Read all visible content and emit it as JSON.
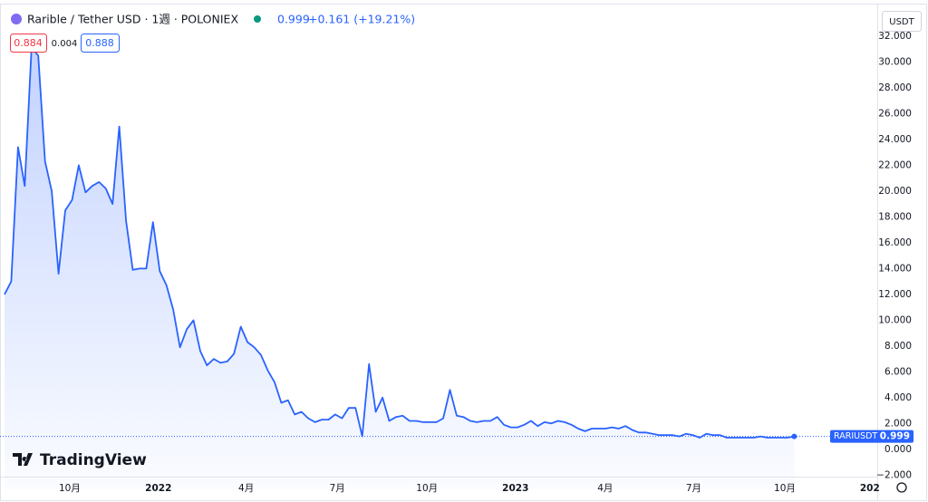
{
  "chart_data": {
    "type": "area",
    "title": "Rarible / Tether USD · 1週 · POLONIEX",
    "last_price": "0.999",
    "change": "+0.161 (+19.21%)",
    "boxes": [
      "0.884",
      "0.004",
      "0.888"
    ],
    "currency": "USDT",
    "symbol": "RARIUSDT",
    "brand": "TradingView",
    "color": "#2962ff",
    "values": [
      12.0,
      13.0,
      23.4,
      20.4,
      31.1,
      30.5,
      22.3,
      20.0,
      13.6,
      18.5,
      19.3,
      22.0,
      19.9,
      20.4,
      20.7,
      20.2,
      19.0,
      25.0,
      17.7,
      13.9,
      14.0,
      14.0,
      17.6,
      13.8,
      12.7,
      10.8,
      7.9,
      9.3,
      10.0,
      7.6,
      6.5,
      7.0,
      6.7,
      6.8,
      7.4,
      9.5,
      8.3,
      7.9,
      7.3,
      6.1,
      5.2,
      3.6,
      3.8,
      2.7,
      2.9,
      2.4,
      2.1,
      2.3,
      2.3,
      2.7,
      2.4,
      3.2,
      3.2,
      1.0,
      6.6,
      2.9,
      4.0,
      2.2,
      2.5,
      2.6,
      2.2,
      2.2,
      2.1,
      2.1,
      2.1,
      2.4,
      4.6,
      2.6,
      2.5,
      2.2,
      2.1,
      2.2,
      2.2,
      2.5,
      1.9,
      1.7,
      1.7,
      1.9,
      2.2,
      1.8,
      2.1,
      2.0,
      2.2,
      2.1,
      1.9,
      1.6,
      1.4,
      1.6,
      1.6,
      1.6,
      1.7,
      1.6,
      1.8,
      1.5,
      1.3,
      1.3,
      1.2,
      1.1,
      1.1,
      1.1,
      1.0,
      1.2,
      1.1,
      0.9,
      1.2,
      1.1,
      1.1,
      0.9,
      0.9,
      0.9,
      0.9,
      0.9,
      1.0,
      0.9,
      0.9,
      0.9,
      0.9,
      0.999
    ],
    "xlim": [
      -0.67,
      129.3
    ],
    "xticks": [
      {
        "value": 9.66,
        "label": "10月"
      },
      {
        "value": 22.8,
        "label": "2022"
      },
      {
        "value": 35.8,
        "label": "4月"
      },
      {
        "value": 49.3,
        "label": "7月"
      },
      {
        "value": 62.6,
        "label": "10月"
      },
      {
        "value": 75.7,
        "label": "2023"
      },
      {
        "value": 89.0,
        "label": "4月"
      },
      {
        "value": 102.1,
        "label": "7月"
      },
      {
        "value": 115.6,
        "label": "10月"
      },
      {
        "value": 128.2,
        "label": "202"
      }
    ],
    "ylim": [
      -3.1,
      34.8
    ],
    "yticks": [
      {
        "value": -2,
        "label": "−2.000"
      },
      {
        "value": 0,
        "label": "0.000"
      },
      {
        "value": 2,
        "label": "2.000"
      },
      {
        "value": 4,
        "label": "4.000"
      },
      {
        "value": 6,
        "label": "6.000"
      },
      {
        "value": 8,
        "label": "8.000"
      },
      {
        "value": 10,
        "label": "10.000"
      },
      {
        "value": 12,
        "label": "12.000"
      },
      {
        "value": 14,
        "label": "14.000"
      },
      {
        "value": 16,
        "label": "16.000"
      },
      {
        "value": 18,
        "label": "18.000"
      },
      {
        "value": 20,
        "label": "20.000"
      },
      {
        "value": 22,
        "label": "22.000"
      },
      {
        "value": 24,
        "label": "24.000"
      },
      {
        "value": 26,
        "label": "26.000"
      },
      {
        "value": 28,
        "label": "28.000"
      },
      {
        "value": 30,
        "label": "30.000"
      },
      {
        "value": 32,
        "label": "32.000"
      }
    ],
    "grid": false
  }
}
